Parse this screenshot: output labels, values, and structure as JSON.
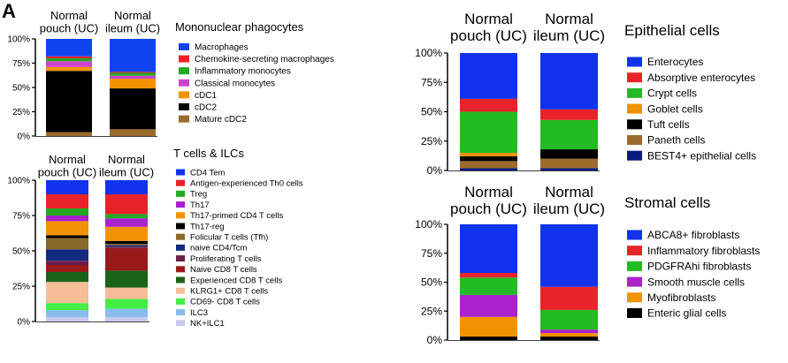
{
  "panel_label": "A",
  "chart_data": [
    {
      "type": "bar",
      "stacked": true,
      "title": "Mononuclear phagocytes",
      "categories": [
        "Normal pouch (UC)",
        "Normal ileum (UC)"
      ],
      "yticks": [
        "0%",
        "25%",
        "50%",
        "75%",
        "100%"
      ],
      "ylim": [
        0,
        100
      ],
      "series": [
        {
          "name": "Mature cDC2",
          "color": "#9B6B2E",
          "values": [
            4,
            7
          ]
        },
        {
          "name": "cDC2",
          "color": "#000000",
          "values": [
            63,
            42
          ]
        },
        {
          "name": "cDC1",
          "color": "#F39200",
          "values": [
            4,
            10
          ]
        },
        {
          "name": "Classical monocytes",
          "color": "#CC44CC",
          "values": [
            6,
            3
          ]
        },
        {
          "name": "Inflammatory monocytes",
          "color": "#22AA22",
          "values": [
            3,
            3
          ]
        },
        {
          "name": "Chemokine-secreting macrophages",
          "color": "#E8242A",
          "values": [
            2,
            1
          ]
        },
        {
          "name": "Macrophages",
          "color": "#1144EE",
          "values": [
            18,
            34
          ]
        }
      ]
    },
    {
      "type": "bar",
      "stacked": true,
      "title": "T cells & ILCs",
      "categories": [
        "Normal pouch (UC)",
        "Normal ileum (UC)"
      ],
      "yticks": [
        "0%",
        "25%",
        "50%",
        "75%",
        "100%"
      ],
      "ylim": [
        0,
        100
      ],
      "series": [
        {
          "name": "NK+ILC1",
          "color": "#C8C8F0",
          "values": [
            3,
            3
          ]
        },
        {
          "name": "ILC3",
          "color": "#88BBEE",
          "values": [
            5,
            6
          ]
        },
        {
          "name": "CD69- CD8 T cells",
          "color": "#44EE44",
          "values": [
            5,
            7
          ]
        },
        {
          "name": "KLRG1+ CD8 T cells",
          "color": "#F5BE96",
          "values": [
            15,
            8
          ]
        },
        {
          "name": "Experienced CD8 T cells",
          "color": "#186418",
          "values": [
            7,
            12
          ]
        },
        {
          "name": "Naive CD8 T cells",
          "color": "#9A1A1A",
          "values": [
            5,
            16
          ]
        },
        {
          "name": "Proliferating T cells",
          "color": "#6A1F4A",
          "values": [
            3,
            1
          ]
        },
        {
          "name": "naive CD4/Tcm",
          "color": "#122A80",
          "values": [
            8,
            1
          ]
        },
        {
          "name": "Folicular T cells (Tfh)",
          "color": "#8A6A2A",
          "values": [
            8,
            1
          ]
        },
        {
          "name": "Th17-reg",
          "color": "#000000",
          "values": [
            2,
            2
          ]
        },
        {
          "name": "Th17-primed CD4 T cells",
          "color": "#F39200",
          "values": [
            10,
            10
          ]
        },
        {
          "name": "Th17",
          "color": "#AA22CC",
          "values": [
            4,
            6
          ]
        },
        {
          "name": "Treg",
          "color": "#22AA22",
          "values": [
            5,
            3
          ]
        },
        {
          "name": "Antigen-experienced Th0 cells",
          "color": "#E8242A",
          "values": [
            10,
            14
          ]
        },
        {
          "name": "CD4 Tem",
          "color": "#1133EE",
          "values": [
            10,
            10
          ]
        }
      ]
    },
    {
      "type": "bar",
      "stacked": true,
      "title": "Epithelial cells",
      "categories": [
        "Normal pouch (UC)",
        "Normal ileum (UC)"
      ],
      "yticks": [
        "0%",
        "25%",
        "50%",
        "75%",
        "100%"
      ],
      "ylim": [
        0,
        100
      ],
      "series": [
        {
          "name": "BEST4+ epithelial cells",
          "color": "#0A1A80",
          "values": [
            2,
            2
          ]
        },
        {
          "name": "Paneth cells",
          "color": "#9B6B2E",
          "values": [
            6,
            8
          ]
        },
        {
          "name": "Tuft cells",
          "color": "#000000",
          "values": [
            4,
            8
          ]
        },
        {
          "name": "Goblet cells",
          "color": "#F39200",
          "values": [
            3,
            0
          ]
        },
        {
          "name": "Crypt cells",
          "color": "#22BB22",
          "values": [
            35,
            25
          ]
        },
        {
          "name": "Absorptive enterocytes",
          "color": "#E8242A",
          "values": [
            11,
            9
          ]
        },
        {
          "name": "Enterocytes",
          "color": "#1133EE",
          "values": [
            39,
            48
          ]
        }
      ]
    },
    {
      "type": "bar",
      "stacked": true,
      "title": "Stromal cells",
      "categories": [
        "Normal pouch (UC)",
        "Normal ileum (UC)"
      ],
      "yticks": [
        "0%",
        "25%",
        "50%",
        "75%",
        "100%"
      ],
      "ylim": [
        0,
        100
      ],
      "series": [
        {
          "name": "Enteric glial cells",
          "color": "#000000",
          "values": [
            3,
            3
          ]
        },
        {
          "name": "Myofibroblasts",
          "color": "#F39200",
          "values": [
            17,
            3
          ]
        },
        {
          "name": "Smooth muscle cells",
          "color": "#AA22CC",
          "values": [
            19,
            3
          ]
        },
        {
          "name": "PDGFRAhi fibroblasts",
          "color": "#22BB22",
          "values": [
            15,
            17
          ]
        },
        {
          "name": "Inflammatory fibroblasts",
          "color": "#E8242A",
          "values": [
            4,
            20
          ]
        },
        {
          "name": "ABCA8+ fibroblasts",
          "color": "#1133EE",
          "values": [
            42,
            54
          ]
        }
      ]
    }
  ]
}
